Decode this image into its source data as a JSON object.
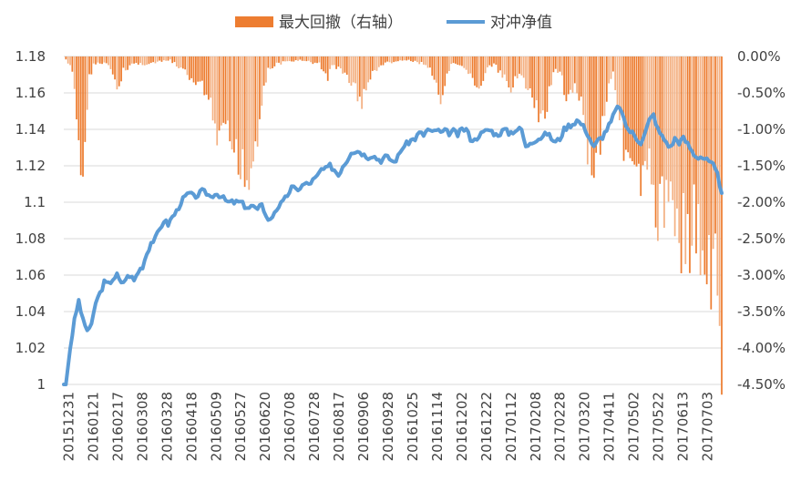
{
  "chart_data": {
    "type": "bar+line",
    "legend": {
      "placement": "top-center",
      "items": [
        {
          "label": "最大回撤（右轴）",
          "kind": "bar",
          "color": "#ED7D31"
        },
        {
          "label": "对冲净值",
          "kind": "line",
          "color": "#5B9BD5"
        }
      ]
    },
    "left_axis": {
      "ylim": [
        1.0,
        1.18
      ],
      "ticks": [
        "1",
        "1.02",
        "1.04",
        "1.06",
        "1.08",
        "1.1",
        "1.12",
        "1.14",
        "1.16",
        "1.18"
      ]
    },
    "right_axis": {
      "ylim": [
        -4.5,
        0.0
      ],
      "unit": "%",
      "ticks": [
        "0.00%",
        "-0.50%",
        "-1.00%",
        "-1.50%",
        "-2.00%",
        "-2.50%",
        "-3.00%",
        "-3.50%",
        "-4.00%",
        "-4.50%"
      ]
    },
    "x_tick_labels": [
      "20151231",
      "20160121",
      "20160217",
      "20160308",
      "20160328",
      "20160418",
      "20160509",
      "20160527",
      "20160620",
      "20160708",
      "20160728",
      "20160817",
      "20160906",
      "20160928",
      "20161025",
      "20161114",
      "20161202",
      "20161222",
      "20170112",
      "20170208",
      "20170228",
      "20170320",
      "20170411",
      "20170502",
      "20170522",
      "20170613",
      "20170703"
    ],
    "trading_days": 360,
    "grid": true,
    "series": [
      {
        "name": "对冲净值",
        "axis": "left",
        "keypoints": [
          [
            0,
            1.0
          ],
          [
            1,
            1.0
          ],
          [
            3,
            1.02
          ],
          [
            5,
            1.035
          ],
          [
            7,
            1.046
          ],
          [
            9,
            1.035
          ],
          [
            11,
            1.03
          ],
          [
            13,
            1.032
          ],
          [
            15,
            1.045
          ],
          [
            17,
            1.05
          ],
          [
            19,
            1.056
          ],
          [
            21,
            1.055
          ],
          [
            23,
            1.058
          ],
          [
            25,
            1.06
          ],
          [
            27,
            1.055
          ],
          [
            29,
            1.058
          ],
          [
            31,
            1.06
          ],
          [
            33,
            1.057
          ],
          [
            35,
            1.062
          ],
          [
            37,
            1.065
          ],
          [
            39,
            1.072
          ],
          [
            41,
            1.078
          ],
          [
            43,
            1.08
          ],
          [
            45,
            1.085
          ],
          [
            47,
            1.09
          ],
          [
            49,
            1.088
          ],
          [
            51,
            1.092
          ],
          [
            53,
            1.095
          ],
          [
            55,
            1.1
          ],
          [
            57,
            1.103
          ],
          [
            59,
            1.105
          ],
          [
            61,
            1.103
          ],
          [
            63,
            1.104
          ],
          [
            65,
            1.106
          ],
          [
            67,
            1.105
          ],
          [
            69,
            1.103
          ],
          [
            71,
            1.105
          ],
          [
            73,
            1.104
          ],
          [
            75,
            1.102
          ],
          [
            77,
            1.1
          ],
          [
            79,
            1.1
          ],
          [
            81,
            1.1
          ],
          [
            83,
            1.1
          ],
          [
            85,
            1.098
          ],
          [
            87,
            1.097
          ],
          [
            89,
            1.098
          ],
          [
            91,
            1.095
          ],
          [
            93,
            1.1
          ],
          [
            95,
            1.092
          ],
          [
            97,
            1.09
          ],
          [
            99,
            1.095
          ],
          [
            101,
            1.098
          ],
          [
            103,
            1.1
          ],
          [
            105,
            1.104
          ],
          [
            107,
            1.108
          ],
          [
            109,
            1.107
          ],
          [
            111,
            1.108
          ],
          [
            113,
            1.11
          ],
          [
            115,
            1.11
          ],
          [
            117,
            1.112
          ],
          [
            119,
            1.114
          ],
          [
            121,
            1.118
          ],
          [
            123,
            1.118
          ],
          [
            125,
            1.12
          ],
          [
            127,
            1.118
          ],
          [
            129,
            1.115
          ],
          [
            131,
            1.12
          ],
          [
            133,
            1.123
          ],
          [
            135,
            1.128
          ],
          [
            137,
            1.128
          ],
          [
            139,
            1.128
          ],
          [
            141,
            1.126
          ],
          [
            143,
            1.125
          ],
          [
            145,
            1.126
          ],
          [
            147,
            1.124
          ],
          [
            149,
            1.123
          ],
          [
            151,
            1.125
          ],
          [
            153,
            1.124
          ],
          [
            155,
            1.122
          ],
          [
            157,
            1.125
          ],
          [
            159,
            1.13
          ],
          [
            161,
            1.132
          ],
          [
            163,
            1.134
          ],
          [
            165,
            1.135
          ],
          [
            167,
            1.138
          ],
          [
            169,
            1.137
          ],
          [
            171,
            1.14
          ],
          [
            173,
            1.138
          ],
          [
            175,
            1.14
          ],
          [
            177,
            1.138
          ],
          [
            179,
            1.139
          ],
          [
            181,
            1.138
          ],
          [
            183,
            1.139
          ],
          [
            185,
            1.137
          ],
          [
            187,
            1.14
          ],
          [
            189,
            1.14
          ],
          [
            191,
            1.135
          ],
          [
            193,
            1.134
          ],
          [
            195,
            1.137
          ],
          [
            197,
            1.138
          ],
          [
            199,
            1.14
          ],
          [
            201,
            1.139
          ],
          [
            203,
            1.137
          ],
          [
            205,
            1.138
          ],
          [
            207,
            1.14
          ],
          [
            209,
            1.138
          ],
          [
            211,
            1.139
          ],
          [
            213,
            1.14
          ],
          [
            215,
            1.14
          ],
          [
            217,
            1.13
          ],
          [
            219,
            1.133
          ],
          [
            221,
            1.134
          ],
          [
            223,
            1.135
          ],
          [
            225,
            1.136
          ],
          [
            227,
            1.138
          ],
          [
            229,
            1.135
          ],
          [
            231,
            1.133
          ],
          [
            233,
            1.135
          ],
          [
            235,
            1.14
          ],
          [
            237,
            1.142
          ],
          [
            239,
            1.143
          ],
          [
            241,
            1.145
          ],
          [
            243,
            1.143
          ],
          [
            245,
            1.14
          ],
          [
            247,
            1.135
          ],
          [
            249,
            1.13
          ],
          [
            251,
            1.134
          ],
          [
            253,
            1.136
          ],
          [
            255,
            1.14
          ],
          [
            257,
            1.144
          ],
          [
            259,
            1.15
          ],
          [
            261,
            1.153
          ],
          [
            263,
            1.145
          ],
          [
            265,
            1.14
          ],
          [
            267,
            1.138
          ],
          [
            269,
            1.135
          ],
          [
            271,
            1.133
          ],
          [
            273,
            1.138
          ],
          [
            275,
            1.145
          ],
          [
            277,
            1.148
          ],
          [
            279,
            1.14
          ],
          [
            281,
            1.136
          ],
          [
            283,
            1.133
          ],
          [
            285,
            1.13
          ],
          [
            287,
            1.135
          ],
          [
            289,
            1.133
          ],
          [
            291,
            1.135
          ],
          [
            293,
            1.132
          ],
          [
            295,
            1.128
          ],
          [
            297,
            1.125
          ],
          [
            299,
            1.125
          ],
          [
            301,
            1.124
          ],
          [
            303,
            1.122
          ],
          [
            305,
            1.12
          ],
          [
            307,
            1.115
          ],
          [
            308,
            1.11
          ],
          [
            309,
            1.105
          ]
        ]
      },
      {
        "name": "最大回撤（右轴）",
        "axis": "right",
        "unit": "%",
        "note_values": "drawdown depth in percent, piecewise peaks",
        "keypoints": [
          [
            0,
            0.0
          ],
          [
            4,
            -0.2
          ],
          [
            6,
            -0.8
          ],
          [
            8,
            -1.5
          ],
          [
            9,
            -1.6
          ],
          [
            10,
            -1.4
          ],
          [
            11,
            -0.6
          ],
          [
            12,
            -0.3
          ],
          [
            14,
            -0.1
          ],
          [
            20,
            -0.1
          ],
          [
            24,
            -0.3
          ],
          [
            26,
            -0.5
          ],
          [
            28,
            -0.2
          ],
          [
            32,
            -0.1
          ],
          [
            40,
            -0.1
          ],
          [
            50,
            -0.05
          ],
          [
            56,
            -0.2
          ],
          [
            60,
            -0.3
          ],
          [
            62,
            -0.5
          ],
          [
            64,
            -0.3
          ],
          [
            66,
            -0.5
          ],
          [
            68,
            -0.6
          ],
          [
            70,
            -0.9
          ],
          [
            72,
            -1.1
          ],
          [
            74,
            -1.2
          ],
          [
            76,
            -1.1
          ],
          [
            78,
            -1.2
          ],
          [
            80,
            -1.3
          ],
          [
            82,
            -1.5
          ],
          [
            84,
            -1.3
          ],
          [
            86,
            -1.7
          ],
          [
            88,
            -1.5
          ],
          [
            90,
            -1.2
          ],
          [
            92,
            -0.8
          ],
          [
            94,
            -0.4
          ],
          [
            96,
            -0.2
          ],
          [
            100,
            -0.1
          ],
          [
            110,
            -0.05
          ],
          [
            120,
            -0.1
          ],
          [
            122,
            -0.2
          ],
          [
            124,
            -0.3
          ],
          [
            126,
            -0.1
          ],
          [
            130,
            -0.2
          ],
          [
            134,
            -0.3
          ],
          [
            138,
            -0.5
          ],
          [
            140,
            -0.7
          ],
          [
            142,
            -0.4
          ],
          [
            144,
            -0.3
          ],
          [
            146,
            -0.2
          ],
          [
            150,
            -0.1
          ],
          [
            160,
            -0.05
          ],
          [
            170,
            -0.1
          ],
          [
            174,
            -0.3
          ],
          [
            176,
            -0.5
          ],
          [
            178,
            -0.7
          ],
          [
            180,
            -0.3
          ],
          [
            182,
            -0.1
          ],
          [
            190,
            -0.2
          ],
          [
            194,
            -0.4
          ],
          [
            196,
            -0.5
          ],
          [
            198,
            -0.2
          ],
          [
            202,
            -0.1
          ],
          [
            206,
            -0.3
          ],
          [
            210,
            -0.4
          ],
          [
            214,
            -0.2
          ],
          [
            218,
            -0.5
          ],
          [
            220,
            -0.6
          ],
          [
            222,
            -0.8
          ],
          [
            224,
            -0.9
          ],
          [
            226,
            -0.8
          ],
          [
            228,
            -0.5
          ],
          [
            230,
            -0.2
          ],
          [
            234,
            -0.3
          ],
          [
            236,
            -0.7
          ],
          [
            238,
            -0.6
          ],
          [
            240,
            -0.3
          ],
          [
            244,
            -0.8
          ],
          [
            246,
            -1.2
          ],
          [
            248,
            -1.5
          ],
          [
            250,
            -1.4
          ],
          [
            252,
            -1.1
          ],
          [
            254,
            -0.7
          ],
          [
            256,
            -0.4
          ],
          [
            258,
            -0.2
          ],
          [
            260,
            -0.6
          ],
          [
            262,
            -1.0
          ],
          [
            264,
            -1.3
          ],
          [
            266,
            -1.5
          ],
          [
            268,
            -1.8
          ],
          [
            270,
            -1.6
          ],
          [
            272,
            -1.9
          ],
          [
            274,
            -1.7
          ],
          [
            276,
            -1.5
          ],
          [
            278,
            -2.2
          ],
          [
            280,
            -2.0
          ],
          [
            282,
            -2.2
          ],
          [
            284,
            -1.8
          ],
          [
            286,
            -1.9
          ],
          [
            288,
            -2.2
          ],
          [
            290,
            -2.4
          ],
          [
            292,
            -2.3
          ],
          [
            294,
            -2.6
          ],
          [
            296,
            -2.2
          ],
          [
            298,
            -2.5
          ],
          [
            300,
            -2.7
          ],
          [
            302,
            -2.8
          ],
          [
            304,
            -3.2
          ],
          [
            306,
            -3.0
          ],
          [
            307,
            -3.4
          ],
          [
            308,
            -3.6
          ],
          [
            309,
            -4.1
          ]
        ]
      }
    ]
  }
}
